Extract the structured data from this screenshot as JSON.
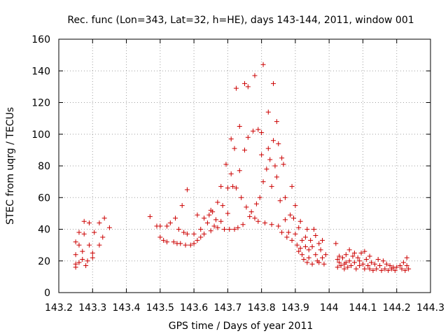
{
  "chart_data": {
    "type": "scatter",
    "title": "Rec. func (Lon=343, Lat=32, h=HE), days 143-144, 2011, window 001",
    "xlabel": "GPS time / Days of year 2011",
    "ylabel": "STEC from uqrg / TECUs",
    "xlim": [
      143.2,
      144.3
    ],
    "ylim": [
      0,
      160
    ],
    "x_ticks": [
      "143.2",
      "143.3",
      "143.4",
      "143.5",
      "143.6",
      "143.7",
      "143.8",
      "143.9",
      "144",
      "144.1",
      "144.2",
      "144.3"
    ],
    "y_ticks": [
      "0",
      "20",
      "40",
      "60",
      "80",
      "100",
      "120",
      "140",
      "160"
    ],
    "grid": true,
    "marker": "+",
    "color": "#cc0000",
    "series": [
      {
        "points": [
          [
            143.25,
            16
          ],
          [
            143.25,
            18
          ],
          [
            143.25,
            24
          ],
          [
            143.25,
            32
          ],
          [
            143.26,
            19
          ],
          [
            143.26,
            30
          ],
          [
            143.26,
            38
          ],
          [
            143.27,
            21
          ],
          [
            143.27,
            26
          ],
          [
            143.275,
            37
          ],
          [
            143.275,
            45
          ],
          [
            143.28,
            17
          ],
          [
            143.285,
            20
          ],
          [
            143.29,
            30
          ],
          [
            143.29,
            44
          ],
          [
            143.3,
            22
          ],
          [
            143.3,
            25
          ],
          [
            143.305,
            38
          ],
          [
            143.32,
            30
          ],
          [
            143.32,
            44
          ],
          [
            143.33,
            35
          ],
          [
            143.335,
            47
          ],
          [
            143.35,
            41
          ],
          [
            143.47,
            48
          ],
          [
            143.49,
            42
          ],
          [
            143.5,
            42
          ],
          [
            143.5,
            35
          ],
          [
            143.51,
            33
          ],
          [
            143.52,
            42
          ],
          [
            143.52,
            32
          ],
          [
            143.53,
            44
          ],
          [
            143.54,
            32
          ],
          [
            143.545,
            47
          ],
          [
            143.55,
            31
          ],
          [
            143.555,
            40
          ],
          [
            143.56,
            31
          ],
          [
            143.565,
            55
          ],
          [
            143.57,
            38
          ],
          [
            143.575,
            30
          ],
          [
            143.58,
            65
          ],
          [
            143.58,
            37
          ],
          [
            143.59,
            30
          ],
          [
            143.6,
            37
          ],
          [
            143.6,
            31
          ],
          [
            143.61,
            49
          ],
          [
            143.61,
            33
          ],
          [
            143.62,
            40
          ],
          [
            143.62,
            35
          ],
          [
            143.63,
            47
          ],
          [
            143.63,
            37
          ],
          [
            143.64,
            44
          ],
          [
            143.645,
            49
          ],
          [
            143.65,
            52
          ],
          [
            143.65,
            39
          ],
          [
            143.655,
            51
          ],
          [
            143.66,
            42
          ],
          [
            143.665,
            46
          ],
          [
            143.67,
            57
          ],
          [
            143.67,
            41
          ],
          [
            143.68,
            67
          ],
          [
            143.68,
            45
          ],
          [
            143.685,
            55
          ],
          [
            143.69,
            40
          ],
          [
            143.695,
            81
          ],
          [
            143.7,
            50
          ],
          [
            143.7,
            66
          ],
          [
            143.705,
            40
          ],
          [
            143.71,
            97
          ],
          [
            143.71,
            75
          ],
          [
            143.715,
            67
          ],
          [
            143.72,
            91
          ],
          [
            143.72,
            40
          ],
          [
            143.725,
            129
          ],
          [
            143.725,
            66
          ],
          [
            143.73,
            41
          ],
          [
            143.735,
            77
          ],
          [
            143.735,
            105
          ],
          [
            143.74,
            60
          ],
          [
            143.745,
            43
          ],
          [
            143.75,
            132
          ],
          [
            143.75,
            90
          ],
          [
            143.755,
            54
          ],
          [
            143.76,
            130
          ],
          [
            143.76,
            98
          ],
          [
            143.765,
            48
          ],
          [
            143.77,
            51
          ],
          [
            143.775,
            102
          ],
          [
            143.78,
            137
          ],
          [
            143.78,
            47
          ],
          [
            143.785,
            56
          ],
          [
            143.79,
            103
          ],
          [
            143.79,
            45
          ],
          [
            143.795,
            60
          ],
          [
            143.8,
            87
          ],
          [
            143.8,
            101
          ],
          [
            143.805,
            144
          ],
          [
            143.805,
            70
          ],
          [
            143.81,
            44
          ],
          [
            143.815,
            78
          ],
          [
            143.82,
            114
          ],
          [
            143.82,
            91
          ],
          [
            143.825,
            84
          ],
          [
            143.83,
            43
          ],
          [
            143.83,
            67
          ],
          [
            143.835,
            96
          ],
          [
            143.835,
            132
          ],
          [
            143.84,
            80
          ],
          [
            143.845,
            108
          ],
          [
            143.845,
            73
          ],
          [
            143.85,
            42
          ],
          [
            143.85,
            94
          ],
          [
            143.855,
            58
          ],
          [
            143.86,
            85
          ],
          [
            143.86,
            38
          ],
          [
            143.865,
            81
          ],
          [
            143.87,
            60
          ],
          [
            143.87,
            46
          ],
          [
            143.875,
            35
          ],
          [
            143.88,
            38
          ],
          [
            143.885,
            49
          ],
          [
            143.89,
            67
          ],
          [
            143.89,
            33
          ],
          [
            143.895,
            47
          ],
          [
            143.9,
            37
          ],
          [
            143.9,
            55
          ],
          [
            143.905,
            30
          ],
          [
            143.91,
            41
          ],
          [
            143.91,
            26
          ],
          [
            143.915,
            28
          ],
          [
            143.915,
            45
          ],
          [
            143.92,
            33
          ],
          [
            143.92,
            24
          ],
          [
            143.925,
            21
          ],
          [
            143.93,
            35
          ],
          [
            143.93,
            29
          ],
          [
            143.935,
            19
          ],
          [
            143.935,
            40
          ],
          [
            143.94,
            27
          ],
          [
            143.94,
            22
          ],
          [
            143.945,
            33
          ],
          [
            143.95,
            29
          ],
          [
            143.95,
            18
          ],
          [
            143.955,
            40
          ],
          [
            143.96,
            24
          ],
          [
            143.96,
            36
          ],
          [
            143.965,
            20
          ],
          [
            143.97,
            31
          ],
          [
            143.97,
            19
          ],
          [
            143.975,
            27
          ],
          [
            143.98,
            22
          ],
          [
            143.98,
            33
          ],
          [
            143.985,
            18
          ],
          [
            143.99,
            24
          ],
          [
            144.02,
            31
          ],
          [
            144.025,
            21
          ],
          [
            144.025,
            16
          ],
          [
            144.03,
            19
          ],
          [
            144.03,
            23
          ],
          [
            144.035,
            17
          ],
          [
            144.04,
            22
          ],
          [
            144.045,
            18
          ],
          [
            144.045,
            15
          ],
          [
            144.05,
            24
          ],
          [
            144.05,
            19
          ],
          [
            144.055,
            16
          ],
          [
            144.06,
            27
          ],
          [
            144.06,
            20
          ],
          [
            144.065,
            17
          ],
          [
            144.07,
            23
          ],
          [
            144.075,
            25
          ],
          [
            144.075,
            19
          ],
          [
            144.08,
            15
          ],
          [
            144.085,
            22
          ],
          [
            144.09,
            20
          ],
          [
            144.09,
            17
          ],
          [
            144.095,
            25
          ],
          [
            144.1,
            18
          ],
          [
            144.105,
            26
          ],
          [
            144.105,
            15
          ],
          [
            144.11,
            21
          ],
          [
            144.115,
            17
          ],
          [
            144.12,
            23
          ],
          [
            144.12,
            15
          ],
          [
            144.125,
            19
          ],
          [
            144.13,
            14
          ],
          [
            144.135,
            18
          ],
          [
            144.14,
            15
          ],
          [
            144.145,
            21
          ],
          [
            144.15,
            17
          ],
          [
            144.155,
            14
          ],
          [
            144.16,
            20
          ],
          [
            144.165,
            15
          ],
          [
            144.17,
            18
          ],
          [
            144.175,
            14
          ],
          [
            144.18,
            17
          ],
          [
            144.185,
            15
          ],
          [
            144.19,
            16
          ],
          [
            144.195,
            14
          ],
          [
            144.2,
            16
          ],
          [
            144.21,
            17
          ],
          [
            144.215,
            15
          ],
          [
            144.22,
            19
          ],
          [
            144.225,
            14
          ],
          [
            144.23,
            17
          ],
          [
            144.23,
            22
          ],
          [
            144.235,
            15
          ]
        ]
      }
    ]
  }
}
